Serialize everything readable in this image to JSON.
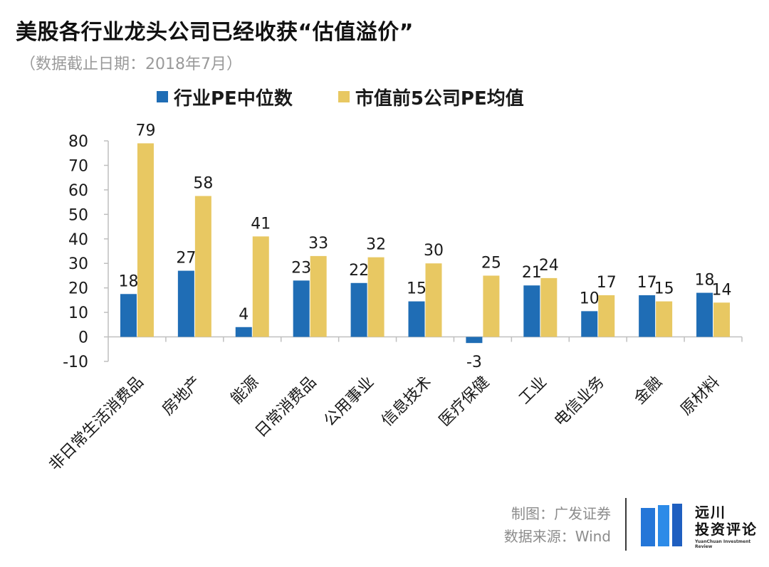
{
  "title": "美股各行业龙头公司已经收获“估值溢价”",
  "subtitle": "（数据截止日期：2018年7月）",
  "colors": {
    "median": "#1f6db5",
    "top5": "#e8c862",
    "axis": "#bfbfbf",
    "text": "#1a1a1a"
  },
  "footer": {
    "maker": "制图：广发证券",
    "source": "数据来源：Wind",
    "logo_line1": "远川",
    "logo_line2": "投资评论",
    "logo_en": "YuanChuan Investment Review"
  },
  "chart_data": {
    "type": "bar",
    "title": "",
    "xlabel": "",
    "ylabel": "",
    "ylim": [
      -10,
      80
    ],
    "yticks": [
      -10,
      0,
      10,
      20,
      30,
      40,
      50,
      60,
      70,
      80
    ],
    "grid": false,
    "legend_position": "top",
    "categories": [
      "非日常生活消费品",
      "房地产",
      "能源",
      "日常消费品",
      "公用事业",
      "信息技术",
      "医疗保健",
      "工业",
      "电信业务",
      "金融",
      "原材料"
    ],
    "series": [
      {
        "name": "行业PE中位数",
        "color": "#1f6db5",
        "values": [
          17.5,
          27,
          4,
          23,
          22,
          14.5,
          -2.5,
          21,
          10.5,
          17,
          18
        ],
        "labels": [
          "18",
          "27",
          "4",
          "23",
          "22",
          "15",
          "-3",
          "21",
          "10",
          "17",
          "18"
        ]
      },
      {
        "name": "市值前5公司PE均值",
        "color": "#e8c862",
        "values": [
          79,
          57.5,
          41,
          33,
          32.5,
          30,
          25,
          24,
          17,
          14.5,
          14
        ],
        "labels": [
          "79",
          "58",
          "41",
          "33",
          "32",
          "30",
          "25",
          "24",
          "17",
          "15",
          "14"
        ]
      }
    ]
  }
}
